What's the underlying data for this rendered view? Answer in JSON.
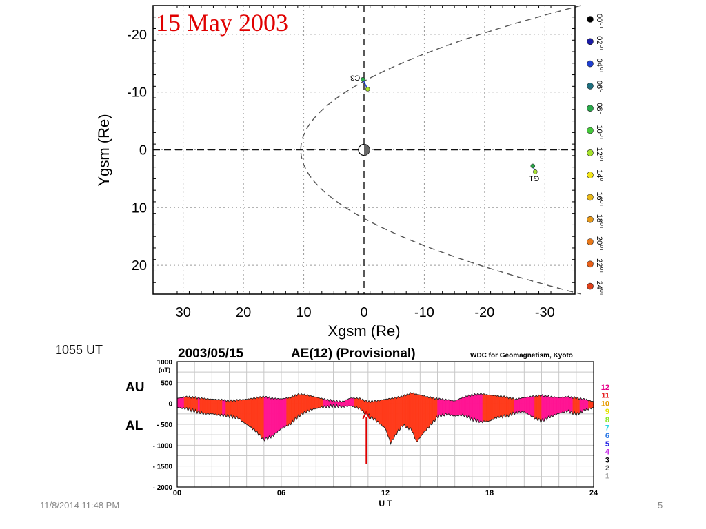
{
  "slide": {
    "title": "15 May 2003",
    "time_note": "1055 UT",
    "footer_date": "11/8/2014 11:48 PM",
    "page_number": "5",
    "title_color": "#e00000"
  },
  "chart_data": [
    {
      "type": "scatter",
      "title": "",
      "xlabel": "Xgsm (Re)",
      "ylabel": "Ygsm (Re)",
      "xlim": [
        35,
        -35
      ],
      "ylim": [
        -25,
        25
      ],
      "x_ticks": [
        30,
        20,
        10,
        0,
        -10,
        -20,
        -30
      ],
      "y_ticks": [
        -20,
        -10,
        0,
        10,
        20
      ],
      "grid": true,
      "legend_position": "right",
      "magnetopause": {
        "nose_x": 10.5,
        "flank_x_at_y25": -36
      },
      "earth": {
        "x": 0,
        "y": 0
      },
      "spacecraft": [
        {
          "name": "C3",
          "points": [
            {
              "x": 0.2,
              "y": -12.2
            },
            {
              "x": -0.6,
              "y": -10.5
            }
          ]
        },
        {
          "name": "G1",
          "points": [
            {
              "x": -28.0,
              "y": 2.8
            },
            {
              "x": -28.4,
              "y": 3.8
            }
          ]
        }
      ],
      "legend": [
        {
          "label": "00",
          "unit": "UT",
          "color": "#000000"
        },
        {
          "label": "02",
          "unit": "UT",
          "color": "#1a1aa8"
        },
        {
          "label": "04",
          "unit": "UT",
          "color": "#1f3fd0"
        },
        {
          "label": "06",
          "unit": "UT",
          "color": "#1f6f7f"
        },
        {
          "label": "08",
          "unit": "UT",
          "color": "#2aa84a"
        },
        {
          "label": "10",
          "unit": "UT",
          "color": "#44c83a"
        },
        {
          "label": "12",
          "unit": "UT",
          "color": "#a6e22e"
        },
        {
          "label": "14",
          "unit": "UT",
          "color": "#f2e41a"
        },
        {
          "label": "16",
          "unit": "UT",
          "color": "#e8b81a"
        },
        {
          "label": "18",
          "unit": "UT",
          "color": "#e89a1a"
        },
        {
          "label": "20",
          "unit": "UT",
          "color": "#e8781a"
        },
        {
          "label": "22",
          "unit": "UT",
          "color": "#e8601a"
        },
        {
          "label": "24",
          "unit": "UT",
          "color": "#e0401a"
        }
      ]
    },
    {
      "type": "area",
      "date": "2003/05/15",
      "title": "AE(12) (Provisional)",
      "source": "WDC for Geomagnetism, Kyoto",
      "unit": "(nT)",
      "xlabel": "U T",
      "xlim": [
        0,
        24
      ],
      "ylim": [
        -2000,
        1000
      ],
      "x_ticks": [
        "00",
        "06",
        "12",
        "18",
        "24"
      ],
      "y_ticks": [
        "1000",
        "500",
        "0",
        "- 500",
        "- 1000",
        "- 1500",
        "- 2000"
      ],
      "au_label": "AU",
      "al_label": "AL",
      "event_marker_ut": 10.9,
      "fill_colors": {
        "primary": "#ff1493",
        "secondary": "#ff3a1a"
      },
      "red_fill_intervals": [
        [
          0.4,
          1.2
        ],
        [
          1.3,
          2.6
        ],
        [
          2.8,
          5.0
        ],
        [
          6.3,
          8.4
        ],
        [
          10.2,
          15.0
        ],
        [
          17.6,
          19.4
        ],
        [
          20.6,
          21.0
        ],
        [
          22.8,
          23.2
        ],
        [
          23.7,
          24
        ]
      ],
      "au": [
        [
          0,
          120
        ],
        [
          0.5,
          160
        ],
        [
          1,
          140
        ],
        [
          1.5,
          120
        ],
        [
          2,
          100
        ],
        [
          2.5,
          90
        ],
        [
          3,
          60
        ],
        [
          3.5,
          80
        ],
        [
          4,
          100
        ],
        [
          4.5,
          130
        ],
        [
          5,
          160
        ],
        [
          5.5,
          120
        ],
        [
          6,
          110
        ],
        [
          6.5,
          140
        ],
        [
          7,
          220
        ],
        [
          7.5,
          200
        ],
        [
          8,
          150
        ],
        [
          8.5,
          100
        ],
        [
          9,
          60
        ],
        [
          9.5,
          40
        ],
        [
          10,
          130
        ],
        [
          10.5,
          120
        ],
        [
          11,
          40
        ],
        [
          11.5,
          60
        ],
        [
          12,
          100
        ],
        [
          12.5,
          130
        ],
        [
          13,
          170
        ],
        [
          13.5,
          250
        ],
        [
          14,
          200
        ],
        [
          14.5,
          150
        ],
        [
          15,
          110
        ],
        [
          15.5,
          90
        ],
        [
          16,
          60
        ],
        [
          16.5,
          150
        ],
        [
          17,
          200
        ],
        [
          17.5,
          230
        ],
        [
          18,
          200
        ],
        [
          18.5,
          180
        ],
        [
          19,
          150
        ],
        [
          19.5,
          100
        ],
        [
          20,
          140
        ],
        [
          20.5,
          170
        ],
        [
          21,
          190
        ],
        [
          21.5,
          160
        ],
        [
          22,
          140
        ],
        [
          22.5,
          160
        ],
        [
          23,
          130
        ],
        [
          23.5,
          100
        ],
        [
          24,
          40
        ]
      ],
      "al": [
        [
          0,
          -100
        ],
        [
          0.5,
          -120
        ],
        [
          1,
          -180
        ],
        [
          1.5,
          -240
        ],
        [
          2,
          -250
        ],
        [
          2.5,
          -280
        ],
        [
          3,
          -300
        ],
        [
          3.5,
          -350
        ],
        [
          4,
          -500
        ],
        [
          4.5,
          -650
        ],
        [
          5,
          -870
        ],
        [
          5.5,
          -780
        ],
        [
          6,
          -600
        ],
        [
          6.5,
          -500
        ],
        [
          7,
          -300
        ],
        [
          7.5,
          -180
        ],
        [
          8,
          -120
        ],
        [
          8.5,
          -80
        ],
        [
          9,
          -60
        ],
        [
          9.5,
          -80
        ],
        [
          10,
          -60
        ],
        [
          10.5,
          -120
        ],
        [
          11,
          -280
        ],
        [
          11.5,
          -420
        ],
        [
          12,
          -600
        ],
        [
          12.3,
          -950
        ],
        [
          12.7,
          -680
        ],
        [
          13,
          -520
        ],
        [
          13.5,
          -620
        ],
        [
          13.8,
          -930
        ],
        [
          14.2,
          -700
        ],
        [
          14.6,
          -520
        ],
        [
          15,
          -320
        ],
        [
          15.5,
          -260
        ],
        [
          16,
          -300
        ],
        [
          16.5,
          -280
        ],
        [
          17,
          -380
        ],
        [
          17.5,
          -440
        ],
        [
          18,
          -420
        ],
        [
          18.5,
          -320
        ],
        [
          19,
          -300
        ],
        [
          19.5,
          -220
        ],
        [
          20,
          -200
        ],
        [
          20.5,
          -330
        ],
        [
          21,
          -420
        ],
        [
          21.5,
          -320
        ],
        [
          22,
          -240
        ],
        [
          22.5,
          -180
        ],
        [
          23,
          -260
        ],
        [
          23.5,
          -160
        ],
        [
          24,
          -100
        ]
      ],
      "side_legend": [
        {
          "label": "12",
          "color": "#e6008a"
        },
        {
          "label": "11",
          "color": "#e62020"
        },
        {
          "label": "10",
          "color": "#e69a00"
        },
        {
          "label": "9",
          "color": "#e6e200"
        },
        {
          "label": "8",
          "color": "#8ae62a"
        },
        {
          "label": "7",
          "color": "#2ad4e6"
        },
        {
          "label": "6",
          "color": "#2a78e6"
        },
        {
          "label": "5",
          "color": "#2a2ae6"
        },
        {
          "label": "4",
          "color": "#c42ae6"
        },
        {
          "label": "3",
          "color": "#000000"
        },
        {
          "label": "2",
          "color": "#555555"
        },
        {
          "label": "1",
          "color": "#aaaaaa"
        }
      ]
    }
  ]
}
